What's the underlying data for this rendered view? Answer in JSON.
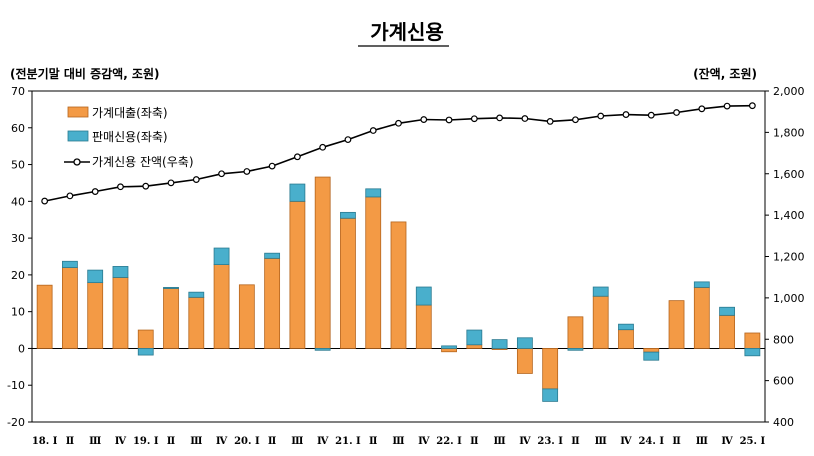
{
  "chart_data": {
    "type": "bar",
    "title": "가계신용",
    "left_unit": "(전분기말 대비 증감액, 조원)",
    "right_unit": "(잔액, 조원)",
    "categories": [
      "18. Ⅰ",
      "Ⅱ",
      "Ⅲ",
      "Ⅳ",
      "19. Ⅰ",
      "Ⅱ",
      "Ⅲ",
      "Ⅳ",
      "20. Ⅰ",
      "Ⅱ",
      "Ⅲ",
      "Ⅳ",
      "21. Ⅰ",
      "Ⅱ",
      "Ⅲ",
      "Ⅳ",
      "22. Ⅰ",
      "Ⅱ",
      "Ⅲ",
      "Ⅳ",
      "23. Ⅰ",
      "Ⅱ",
      "Ⅲ",
      "Ⅳ",
      "24. Ⅰ",
      "Ⅱ",
      "Ⅲ",
      "Ⅳ",
      "25. Ⅰ"
    ],
    "stacked": true,
    "series": [
      {
        "name": "가계대출(좌축)",
        "axis": "left",
        "type": "bar",
        "color": "#F39A45",
        "values": [
          17.2,
          22.0,
          17.9,
          19.3,
          5.0,
          16.3,
          13.9,
          22.8,
          17.3,
          24.5,
          40.0,
          46.6,
          35.4,
          41.2,
          34.4,
          11.8,
          -0.9,
          1.0,
          -0.3,
          -6.8,
          -11.0,
          8.6,
          14.2,
          5.1,
          -1.0,
          13.0,
          16.6,
          9.0,
          4.2
        ]
      },
      {
        "name": "판매신용(좌축)",
        "axis": "left",
        "type": "bar",
        "color": "#49AFCC",
        "values": [
          0.0,
          1.7,
          3.4,
          3.0,
          -1.8,
          0.3,
          1.4,
          4.5,
          0.0,
          1.4,
          4.7,
          -0.5,
          1.6,
          2.2,
          0.0,
          4.9,
          0.7,
          4.0,
          2.4,
          2.9,
          -3.4,
          -0.5,
          2.5,
          1.5,
          -2.2,
          0.0,
          1.5,
          2.2,
          -2.0
        ]
      },
      {
        "name": "가계신용 잔액(우축)",
        "axis": "right",
        "type": "line",
        "color": "#000000",
        "values": [
          1468,
          1493,
          1514,
          1537,
          1540,
          1556,
          1572,
          1600,
          1611,
          1637,
          1682,
          1728,
          1765,
          1809,
          1844,
          1862,
          1860,
          1866,
          1870,
          1867,
          1853,
          1861,
          1879,
          1886,
          1883,
          1896,
          1914,
          1927,
          1929
        ]
      }
    ],
    "y_left": {
      "min": -20,
      "max": 70,
      "step": 10
    },
    "y_right": {
      "min": 400,
      "max": 2000,
      "step": 200
    },
    "legend_position": "top-left",
    "grid": false
  }
}
